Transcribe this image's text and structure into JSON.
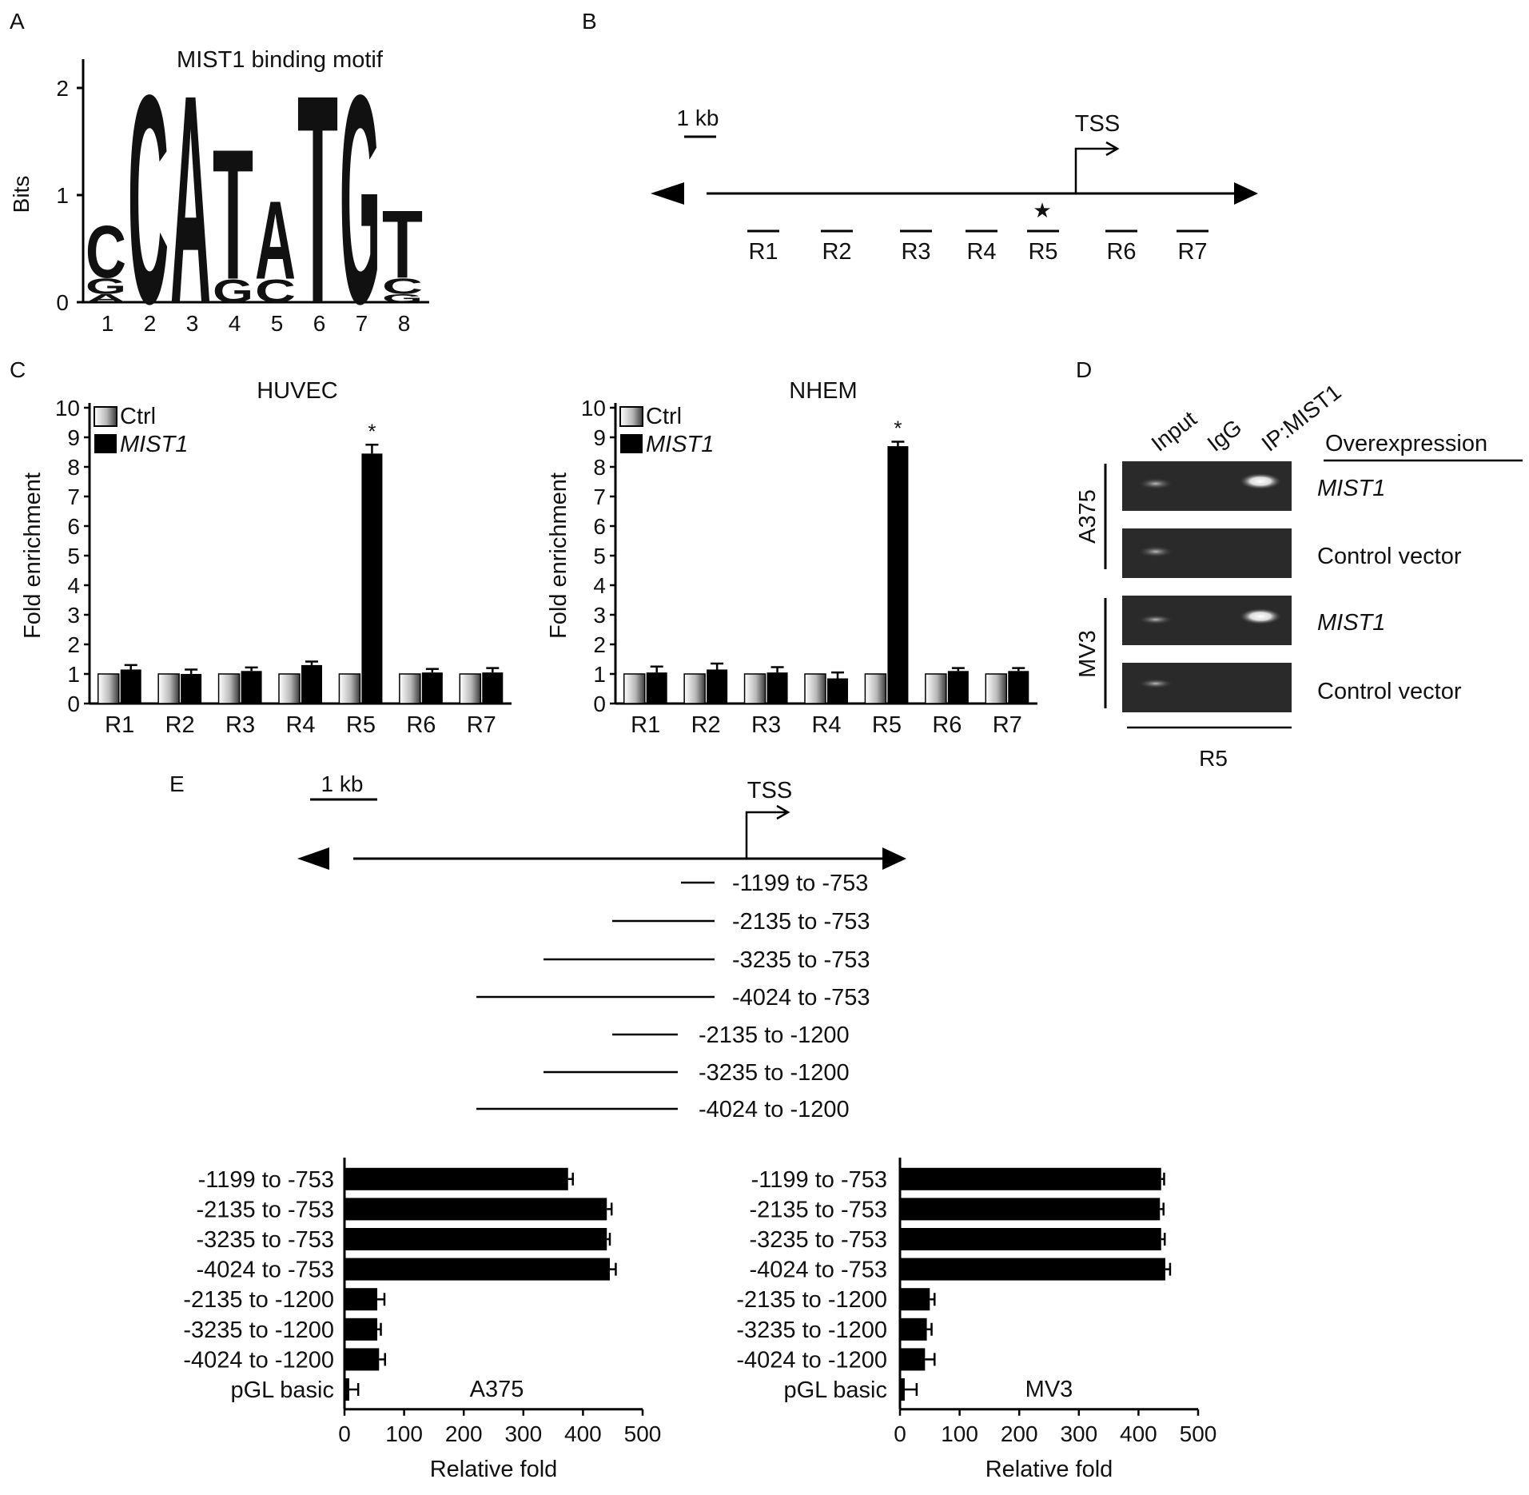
{
  "panels": {
    "A": {
      "letter": "A",
      "title": "MIST1 binding motif",
      "ylabel": "Bits",
      "yticks": [
        "0",
        "1",
        "2"
      ],
      "positions": [
        "1",
        "2",
        "3",
        "4",
        "5",
        "6",
        "7",
        "8"
      ],
      "motif_columns": [
        [
          {
            "base": "C",
            "bits": 0.5
          },
          {
            "base": "G",
            "bits": 0.15
          },
          {
            "base": "A",
            "bits": 0.08
          }
        ],
        [
          {
            "base": "C",
            "bits": 2.0
          }
        ],
        [
          {
            "base": "A",
            "bits": 2.0
          }
        ],
        [
          {
            "base": "T",
            "bits": 1.25
          },
          {
            "base": "G",
            "bits": 0.22
          }
        ],
        [
          {
            "base": "A",
            "bits": 0.75
          },
          {
            "base": "C",
            "bits": 0.22
          }
        ],
        [
          {
            "base": "T",
            "bits": 2.0
          }
        ],
        [
          {
            "base": "G",
            "bits": 2.0
          }
        ],
        [
          {
            "base": "T",
            "bits": 0.65
          },
          {
            "base": "C",
            "bits": 0.15
          },
          {
            "base": "G",
            "bits": 0.08
          }
        ]
      ],
      "base_colors": {
        "A": "#5bbf45",
        "C": "#1c4fa8",
        "G": "#c9c82b",
        "T": "#e8192c"
      }
    },
    "B": {
      "letter": "B",
      "scale_label": "1 kb",
      "tss_label": "TSS",
      "star": "★",
      "regions": [
        "R1",
        "R2",
        "R3",
        "R4",
        "R5",
        "R6",
        "R7"
      ]
    },
    "C": {
      "letter": "C",
      "legend_ctrl": "Ctrl",
      "legend_mist1": "MIST1",
      "star_label": "*"
    },
    "D": {
      "letter": "D",
      "lane_labels": [
        "Input",
        "IgG",
        "IP:MIST1"
      ],
      "header": "Overexpression",
      "cell_lines": [
        "A375",
        "MV3"
      ],
      "row_labels": [
        "MIST1",
        "Control vector",
        "MIST1",
        "Control vector"
      ],
      "bottom_label": "R5"
    },
    "E": {
      "letter": "E",
      "scale_label": "1 kb",
      "tss_label": "TSS",
      "constructs": [
        "-1199 to -753",
        "-2135 to -753",
        "-3235 to -753",
        "-4024 to -753",
        "-2135 to -1200",
        "-3235 to -1200",
        "-4024 to -1200"
      ]
    }
  },
  "chart_data": [
    {
      "type": "bar",
      "title": "HUVEC",
      "categories": [
        "R1",
        "R2",
        "R3",
        "R4",
        "R5",
        "R6",
        "R7"
      ],
      "series": [
        {
          "name": "Ctrl",
          "values": [
            1,
            1,
            1,
            1,
            1,
            1,
            1
          ]
        },
        {
          "name": "MIST1",
          "values": [
            1.15,
            1.0,
            1.1,
            1.3,
            8.45,
            1.05,
            1.05
          ],
          "errors": [
            0.15,
            0.15,
            0.12,
            0.12,
            0.3,
            0.12,
            0.15
          ]
        }
      ],
      "ylabel": "Fold enrichment",
      "ylim": [
        0,
        10
      ],
      "yticks": [
        "0",
        "1",
        "2",
        "3",
        "4",
        "5",
        "6",
        "7",
        "8",
        "9",
        "10"
      ],
      "annotations": [
        {
          "category": "R5",
          "text": "*"
        }
      ]
    },
    {
      "type": "bar",
      "title": "NHEM",
      "categories": [
        "R1",
        "R2",
        "R3",
        "R4",
        "R5",
        "R6",
        "R7"
      ],
      "series": [
        {
          "name": "Ctrl",
          "values": [
            1,
            1,
            1,
            1,
            1,
            1,
            1
          ]
        },
        {
          "name": "MIST1",
          "values": [
            1.05,
            1.15,
            1.05,
            0.85,
            8.7,
            1.1,
            1.1
          ],
          "errors": [
            0.2,
            0.2,
            0.18,
            0.2,
            0.15,
            0.1,
            0.1
          ]
        }
      ],
      "ylabel": "Fold enrichment",
      "ylim": [
        0,
        10
      ],
      "yticks": [
        "0",
        "1",
        "2",
        "3",
        "4",
        "5",
        "6",
        "7",
        "8",
        "9",
        "10"
      ],
      "annotations": [
        {
          "category": "R5",
          "text": "*"
        }
      ]
    },
    {
      "type": "bar",
      "orientation": "horizontal",
      "label": "A375",
      "categories": [
        "-1199 to -753",
        "-2135 to -753",
        "-3235 to -753",
        "-4024 to -753",
        "-2135 to -1200",
        "-3235 to -1200",
        "-4024 to -1200",
        "pGL basic"
      ],
      "values": [
        375,
        440,
        440,
        445,
        55,
        55,
        58,
        8
      ],
      "errors": [
        8,
        8,
        5,
        10,
        12,
        6,
        10,
        15
      ],
      "xlabel": "Relative fold",
      "xlim": [
        0,
        500
      ],
      "xticks": [
        "0",
        "100",
        "200",
        "300",
        "400",
        "500"
      ]
    },
    {
      "type": "bar",
      "orientation": "horizontal",
      "label": "MV3",
      "categories": [
        "-1199 to -753",
        "-2135 to -753",
        "-3235 to -753",
        "-4024 to -753",
        "-2135 to -1200",
        "-3235 to -1200",
        "-4024 to -1200",
        "pGL basic"
      ],
      "values": [
        438,
        436,
        438,
        445,
        50,
        45,
        42,
        8
      ],
      "errors": [
        5,
        6,
        6,
        8,
        8,
        8,
        16,
        20
      ],
      "xlabel": "Relative fold",
      "xlim": [
        0,
        500
      ],
      "xticks": [
        "0",
        "100",
        "200",
        "300",
        "400",
        "500"
      ]
    }
  ]
}
